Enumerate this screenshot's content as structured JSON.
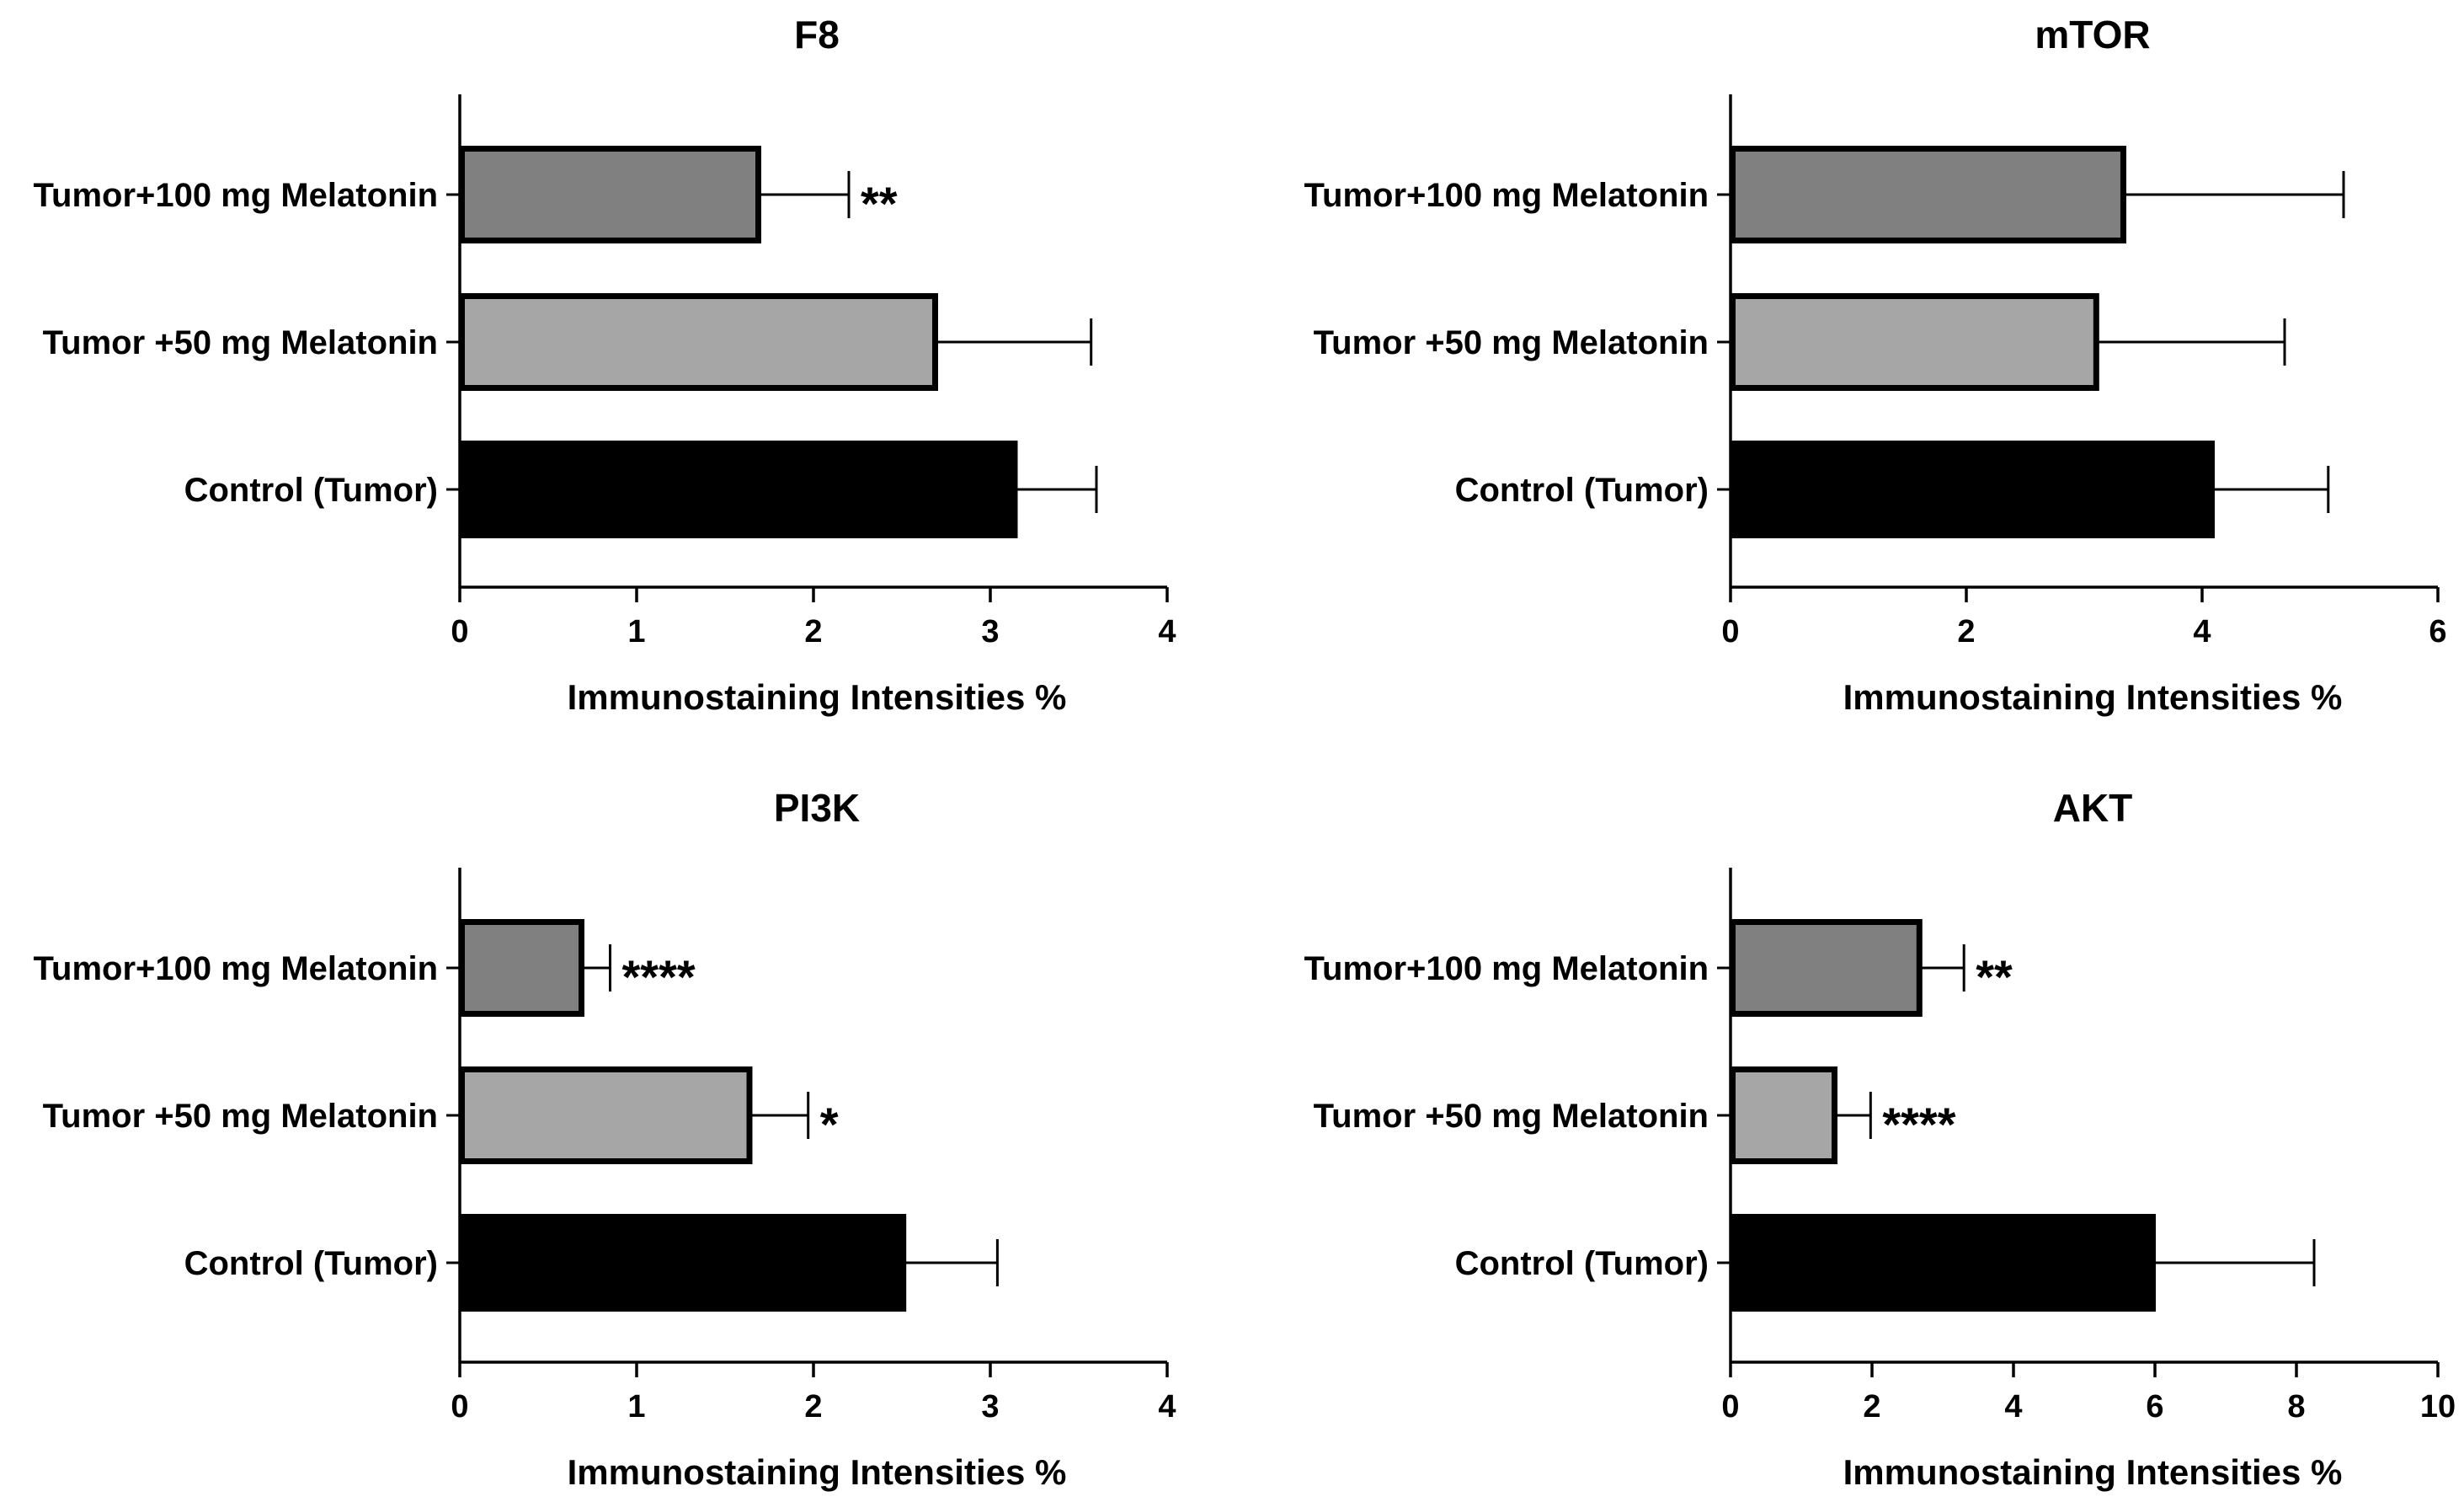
{
  "chart_data": [
    {
      "type": "bar",
      "orientation": "horizontal",
      "title": "F8",
      "xlabel": "Immunostaining Intensities %",
      "xlim": [
        0,
        4
      ],
      "xticks": [
        0,
        1,
        2,
        3,
        4
      ],
      "categories": [
        "Tumor+100 mg Melatonin",
        "Tumor +50 mg Melatonin",
        "Control (Tumor)"
      ],
      "values": [
        1.7,
        2.7,
        3.15
      ],
      "errors": [
        0.5,
        0.87,
        0.45
      ],
      "fills": [
        "#808080",
        "#a6a6a6",
        "#000000"
      ],
      "significance": [
        "**",
        "",
        ""
      ]
    },
    {
      "type": "bar",
      "orientation": "horizontal",
      "title": "mTOR",
      "xlabel": "Immunostaining Intensities %",
      "xlim": [
        0,
        6
      ],
      "xticks": [
        0,
        2,
        4,
        6
      ],
      "categories": [
        "Tumor+100 mg Melatonin",
        "Tumor +50 mg Melatonin",
        "Control (Tumor)"
      ],
      "values": [
        3.35,
        3.12,
        4.1
      ],
      "errors": [
        1.85,
        1.58,
        0.97
      ],
      "fills": [
        "#808080",
        "#a6a6a6",
        "#000000"
      ],
      "significance": [
        "",
        "",
        ""
      ]
    },
    {
      "type": "bar",
      "orientation": "horizontal",
      "title": "PI3K",
      "xlabel": "Immunostaining Intensities %",
      "xlim": [
        0,
        4
      ],
      "xticks": [
        0,
        1,
        2,
        3,
        4
      ],
      "categories": [
        "Tumor+100 mg Melatonin",
        "Tumor +50 mg Melatonin",
        "Control (Tumor)"
      ],
      "values": [
        0.7,
        1.65,
        2.52
      ],
      "errors": [
        0.15,
        0.32,
        0.52
      ],
      "fills": [
        "#808080",
        "#a6a6a6",
        "#000000"
      ],
      "significance": [
        "****",
        "*",
        ""
      ]
    },
    {
      "type": "bar",
      "orientation": "horizontal",
      "title": "AKT",
      "xlabel": "Immunostaining Intensities %",
      "xlim": [
        0,
        10
      ],
      "xticks": [
        0,
        2,
        4,
        6,
        8,
        10
      ],
      "categories": [
        "Tumor+100 mg Melatonin",
        "Tumor +50 mg Melatonin",
        "Control (Tumor)"
      ],
      "values": [
        2.7,
        1.5,
        6.0
      ],
      "errors": [
        0.6,
        0.48,
        2.25
      ],
      "fills": [
        "#808080",
        "#a6a6a6",
        "#000000"
      ],
      "significance": [
        "**",
        "****",
        ""
      ]
    }
  ]
}
